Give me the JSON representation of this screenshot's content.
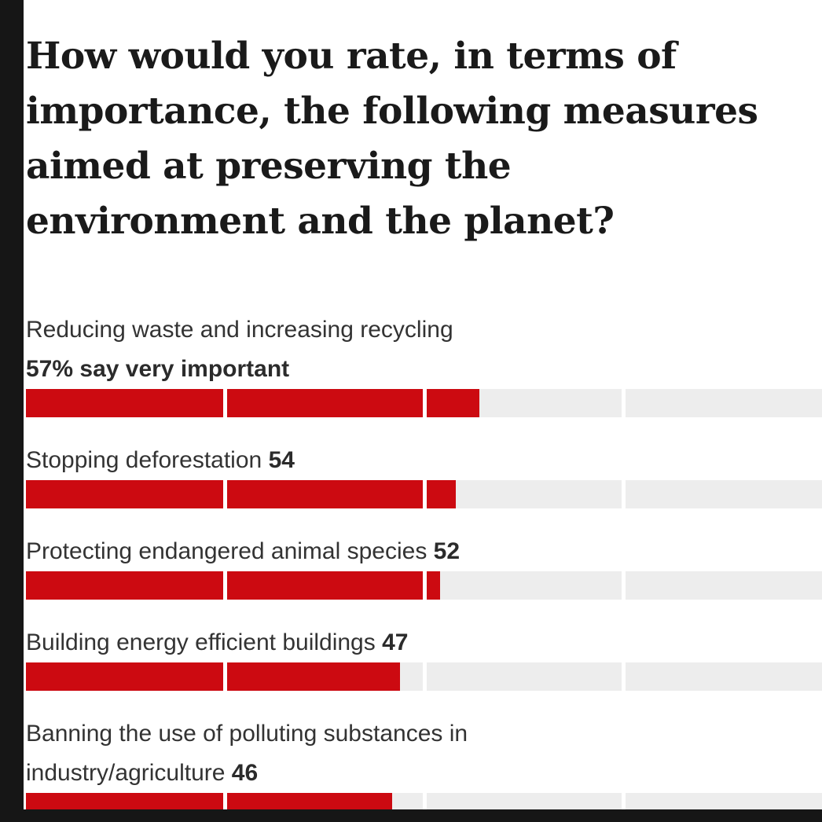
{
  "page": {
    "background": "#ffffff",
    "frame_color": "#161616"
  },
  "chart_data": {
    "type": "bar",
    "orientation": "horizontal",
    "title": "How would you rate, in terms of importance, the following measures aimed at preserving the environment and the planet?",
    "title_lines": [
      "How would you rate, in terms of",
      "importance, the following measures",
      "aimed at preserving the",
      "environment and the planet?"
    ],
    "unit": "percent",
    "xlim": [
      0,
      100
    ],
    "gridlines_percent": [
      25,
      50,
      75
    ],
    "bar_color": "#cc0a11",
    "track_color": "#ededed",
    "legend": "none",
    "items": [
      {
        "label": "Reducing waste and increasing recycling",
        "value": 57,
        "value_text": "57% say very important"
      },
      {
        "label": "Stopping deforestation",
        "value": 54,
        "value_text": "54"
      },
      {
        "label": "Protecting endangered animal species",
        "value": 52,
        "value_text": "52"
      },
      {
        "label": "Building energy efficient buildings",
        "value": 47,
        "value_text": "47"
      },
      {
        "label": "Banning the use of polluting substances in industry/agriculture",
        "value": 46,
        "value_text": "46"
      }
    ]
  }
}
